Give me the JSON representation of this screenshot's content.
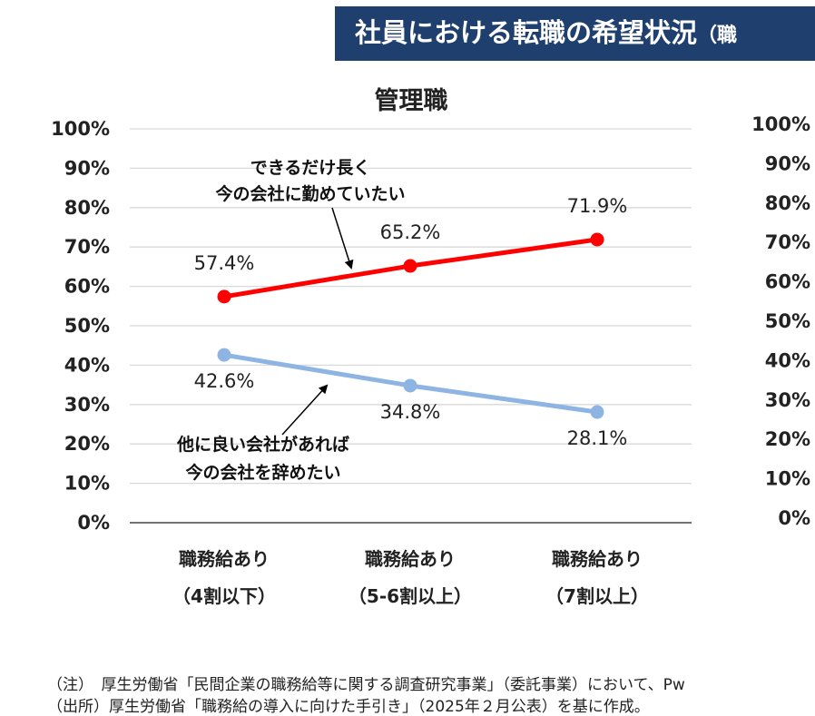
{
  "header": {
    "title": "社員における転職の希望状況",
    "title_suffix": "（職"
  },
  "chart_data": {
    "type": "line",
    "title": "管理職",
    "categories": [
      [
        "職務給あり",
        "（4割以下）"
      ],
      [
        "職務給あり",
        "（5-6割以上）"
      ],
      [
        "職務給あり",
        "（7割以上）"
      ]
    ],
    "series": [
      {
        "values": [
          57.4,
          65.2,
          71.9
        ],
        "labels": [
          "57.4%",
          "65.2%",
          "71.9%"
        ],
        "color": "#ff0000"
      },
      {
        "values": [
          42.6,
          34.8,
          28.1
        ],
        "labels": [
          "42.6%",
          "34.8%",
          "28.1%"
        ],
        "color": "#8eb4e3"
      }
    ],
    "ylim": [
      0,
      100
    ],
    "yticks": [
      "0%",
      "10%",
      "20%",
      "30%",
      "40%",
      "50%",
      "60%",
      "70%",
      "80%",
      "90%",
      "100%"
    ],
    "grid": true,
    "annotations": [
      {
        "lines": [
          "できるだけ長く",
          "今の会社に勤めていたい"
        ]
      },
      {
        "lines": [
          "他に良い会社があれば",
          "今の会社を辞めたい"
        ]
      }
    ],
    "right_axis_ticks": [
      "0%",
      "10%",
      "20%",
      "30%",
      "40%",
      "50%",
      "60%",
      "70%",
      "80%",
      "90%",
      "100%"
    ]
  },
  "footnotes": {
    "note": "（注）　厚生労働省「民間企業の職務給等に関する調査研究事業」（委託事業）において、Pw",
    "source": "（出所）厚生労働省「職務給の導入に向けた手引き」（2025年２月公表）を基に作成。"
  }
}
